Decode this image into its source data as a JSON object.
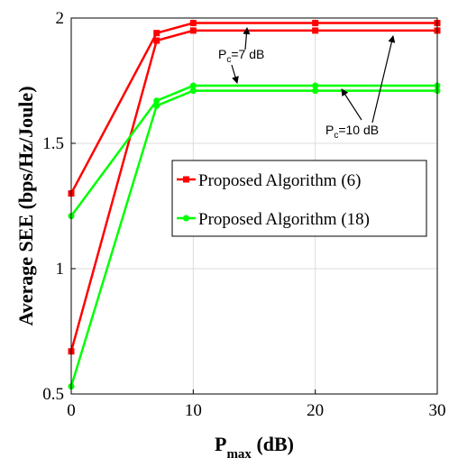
{
  "chart_data": {
    "type": "line",
    "x": [
      0,
      7,
      10,
      20,
      30
    ],
    "xlim": [
      0,
      30
    ],
    "ylim": [
      0.5,
      2
    ],
    "xticks": [
      "0",
      "10",
      "20",
      "30"
    ],
    "yticks": [
      "0.5",
      "1",
      "1.5",
      "2"
    ],
    "xlabel_main": "P",
    "xlabel_sub": "max",
    "xlabel_unit": " (dB)",
    "ylabel": "Average SEE (bps/Hz/Joule)",
    "grid": true,
    "legend_position": "center-right",
    "legend": [
      {
        "label": "Proposed Algorithm (6)",
        "color": "#ff0000",
        "marker": "square"
      },
      {
        "label": "Proposed Algorithm (18)",
        "color": "#00ff00",
        "marker": "circle"
      }
    ],
    "series": [
      {
        "group": 0,
        "color": "#ff0000",
        "marker": "square",
        "values": [
          1.3,
          1.94,
          1.98,
          1.98,
          1.98
        ]
      },
      {
        "group": 0,
        "color": "#ff0000",
        "marker": "square",
        "values": [
          0.67,
          1.91,
          1.95,
          1.95,
          1.95
        ]
      },
      {
        "group": 1,
        "color": "#00ff00",
        "marker": "circle",
        "values": [
          1.21,
          1.67,
          1.73,
          1.73,
          1.73
        ]
      },
      {
        "group": 1,
        "color": "#00ff00",
        "marker": "circle",
        "values": [
          0.53,
          1.65,
          1.71,
          1.71,
          1.71
        ]
      }
    ],
    "annotations": [
      {
        "main": "P",
        "sub": "c",
        "rest": "=7 dB"
      },
      {
        "main": "P",
        "sub": "c",
        "rest": "=10 dB"
      }
    ]
  }
}
